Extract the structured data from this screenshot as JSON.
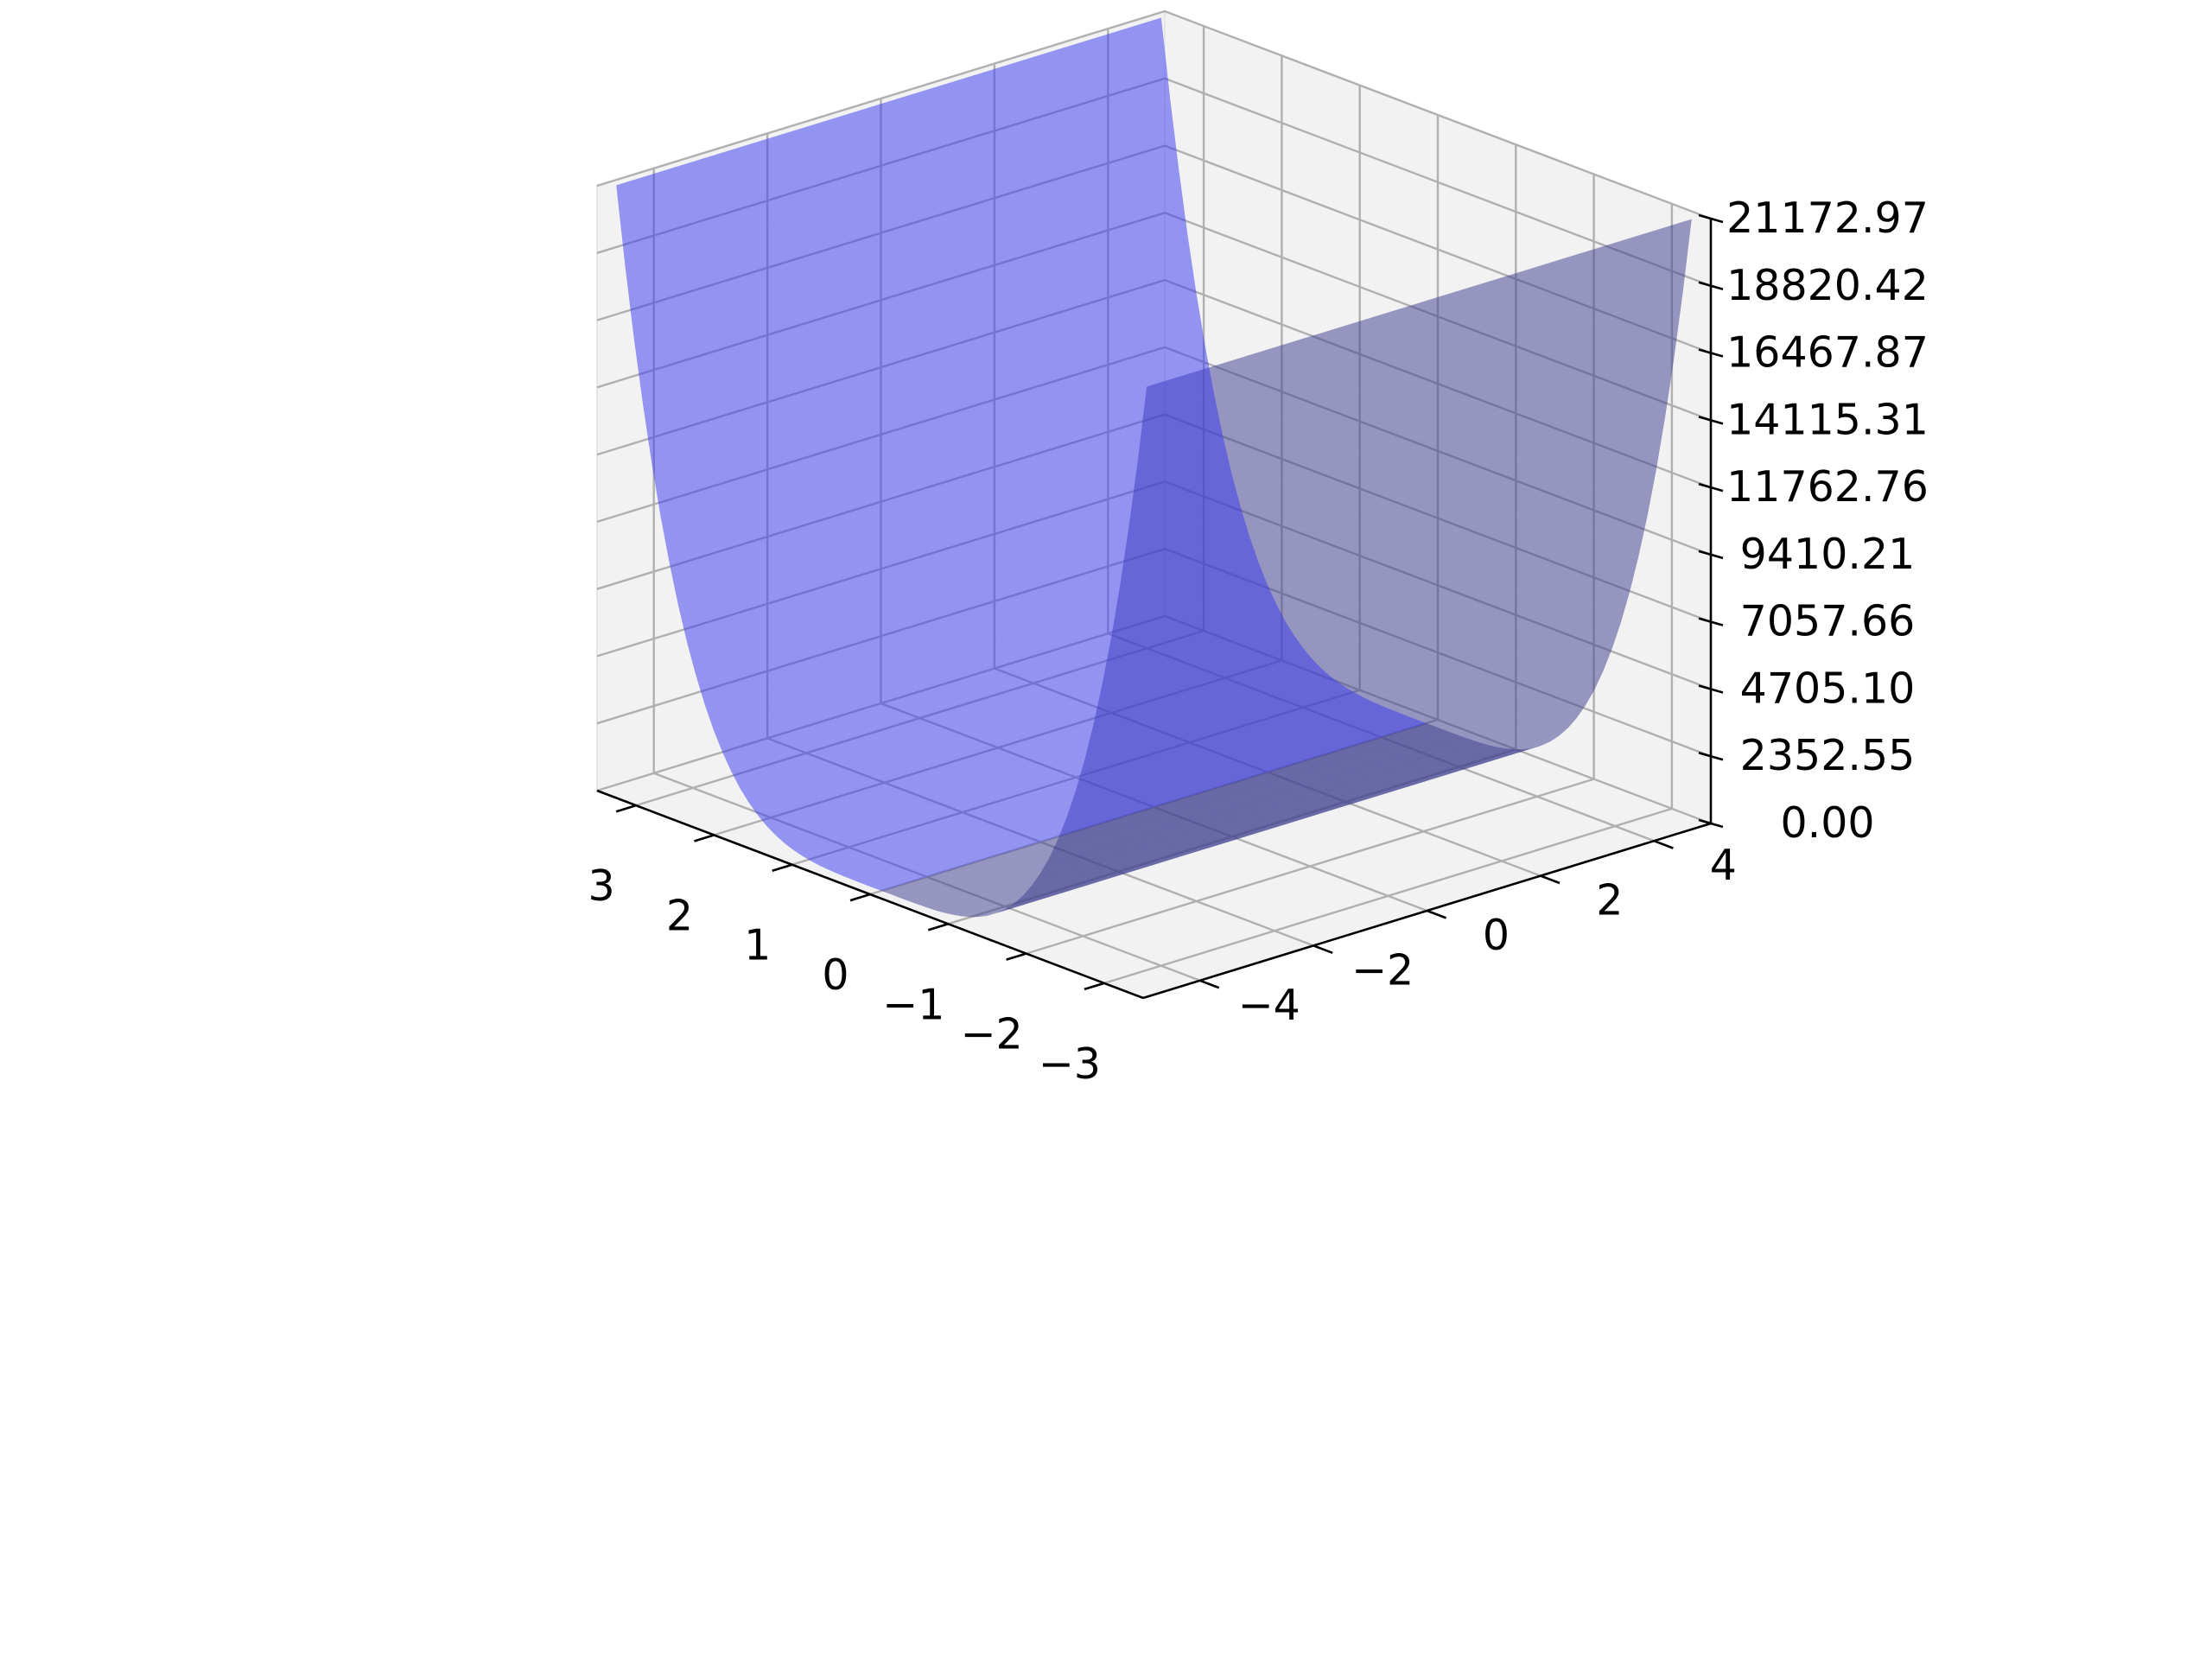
{
  "chart_data": {
    "type": "surface3d",
    "title": "",
    "xlabel": "",
    "ylabel": "",
    "zlabel": "",
    "x_ticks": [
      "−3",
      "−2",
      "−1",
      "0",
      "1",
      "2",
      "3"
    ],
    "y_ticks": [
      "−4",
      "−2",
      "0",
      "2",
      "4"
    ],
    "z_ticks": [
      "0.00",
      "2352.55",
      "4705.10",
      "7057.66",
      "9410.21",
      "11762.76",
      "14115.31",
      "16467.87",
      "18820.42",
      "21172.97"
    ],
    "xlim": [
      -3.5,
      3.5
    ],
    "ylim": [
      -5,
      5
    ],
    "zlim": [
      0,
      21172.97
    ],
    "surface": {
      "x_range": [
        -3.4,
        3.4
      ],
      "y_range": [
        -4.8,
        4.8
      ],
      "z_formula": "approximately 159.1 * x^4 (constant along y)",
      "z_min": 0,
      "z_max": 21172.97
    },
    "surface_color": "#3b3bf0",
    "pane_color": "#f2f2f2",
    "grid": true
  }
}
